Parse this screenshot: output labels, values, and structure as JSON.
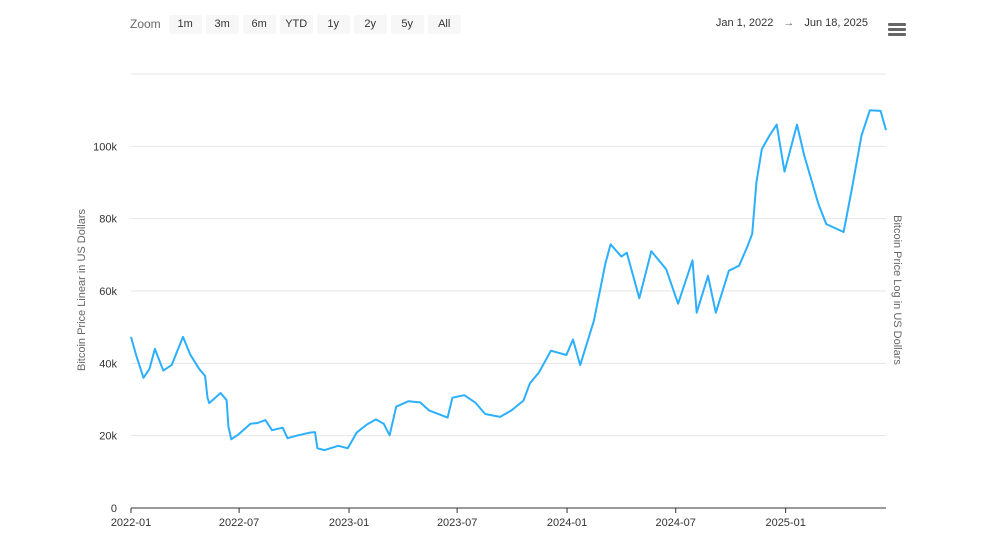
{
  "toolbar": {
    "zoom_label": "Zoom",
    "buttons": [
      "1m",
      "3m",
      "6m",
      "YTD",
      "1y",
      "2y",
      "5y",
      "All"
    ]
  },
  "range": {
    "from": "Jan 1, 2022",
    "arrow": "→",
    "to": "Jun 18, 2025"
  },
  "menu_icon": "hamburger-menu-icon",
  "colors": {
    "series": "#2caffe",
    "grid": "#e6e6e6",
    "axis": "#333333"
  },
  "chart_data": {
    "type": "line",
    "ylabel_left": "Bitcoin Price Linear in US Dollars",
    "ylabel_right": "Bitcoin Price Log in US Dollars",
    "y_ticks": [
      0,
      20000,
      40000,
      60000,
      80000,
      100000
    ],
    "y_tick_labels": [
      "0",
      "20k",
      "40k",
      "60k",
      "80k",
      "100k"
    ],
    "ylim": [
      0,
      120000
    ],
    "x_ticks": [
      "2022-01-01",
      "2022-07-01",
      "2023-01-01",
      "2023-07-01",
      "2024-01-01",
      "2024-07-01",
      "2025-01-01"
    ],
    "x_tick_labels": [
      "2022-01",
      "2022-07",
      "2023-01",
      "2023-07",
      "2024-01",
      "2024-07",
      "2025-01"
    ],
    "xlim": [
      "2022-01-01",
      "2025-06-18"
    ],
    "grid": true,
    "legend": "none",
    "series": [
      {
        "x": [
          "2022-01-01",
          "2022-01-10",
          "2022-01-22",
          "2022-02-01",
          "2022-02-10",
          "2022-02-24",
          "2022-03-10",
          "2022-03-29",
          "2022-04-10",
          "2022-04-25",
          "2022-05-05",
          "2022-05-09",
          "2022-05-12",
          "2022-05-31",
          "2022-06-10",
          "2022-06-13",
          "2022-06-18",
          "2022-07-01",
          "2022-07-20",
          "2022-08-01",
          "2022-08-14",
          "2022-08-25",
          "2022-09-12",
          "2022-09-20",
          "2022-10-05",
          "2022-10-26",
          "2022-11-05",
          "2022-11-09",
          "2022-11-21",
          "2022-12-14",
          "2022-12-30",
          "2023-01-14",
          "2023-01-31",
          "2023-02-15",
          "2023-02-28",
          "2023-03-10",
          "2023-03-21",
          "2023-04-10",
          "2023-04-30",
          "2023-05-15",
          "2023-06-15",
          "2023-06-23",
          "2023-07-13",
          "2023-07-31",
          "2023-08-17",
          "2023-09-11",
          "2023-09-30",
          "2023-10-20",
          "2023-10-31",
          "2023-11-15",
          "2023-12-05",
          "2023-12-31",
          "2024-01-11",
          "2024-01-23",
          "2024-02-15",
          "2024-02-28",
          "2024-03-05",
          "2024-03-14",
          "2024-04-01",
          "2024-04-10",
          "2024-05-01",
          "2024-05-21",
          "2024-06-15",
          "2024-07-05",
          "2024-07-29",
          "2024-08-05",
          "2024-08-24",
          "2024-09-06",
          "2024-09-28",
          "2024-10-15",
          "2024-10-29",
          "2024-11-06",
          "2024-11-13",
          "2024-11-22",
          "2024-12-05",
          "2024-12-17",
          "2024-12-30",
          "2025-01-20",
          "2025-02-01",
          "2025-02-25",
          "2025-03-10",
          "2025-04-08",
          "2025-04-21",
          "2025-05-08",
          "2025-05-22",
          "2025-06-09",
          "2025-06-18"
        ],
        "values": [
          47300,
          42000,
          36000,
          38500,
          44000,
          38000,
          39500,
          47300,
          42500,
          38500,
          36500,
          30500,
          29000,
          31800,
          29800,
          22500,
          19000,
          20500,
          23300,
          23500,
          24300,
          21500,
          22200,
          19300,
          20000,
          20800,
          21000,
          16500,
          16000,
          17200,
          16500,
          20900,
          23100,
          24500,
          23300,
          20100,
          28000,
          29500,
          29200,
          27000,
          25000,
          30500,
          31200,
          29200,
          26000,
          25200,
          27000,
          29700,
          34500,
          37500,
          43500,
          42300,
          46600,
          39500,
          51800,
          62500,
          67500,
          72900,
          69500,
          70600,
          58000,
          71000,
          66000,
          56500,
          68500,
          54000,
          64200,
          54000,
          65600,
          67000,
          72300,
          75800,
          90000,
          99200,
          103000,
          106000,
          93000,
          106000,
          97500,
          84000,
          78500,
          76300,
          87500,
          103000,
          110000,
          109800,
          104500
        ]
      }
    ]
  }
}
